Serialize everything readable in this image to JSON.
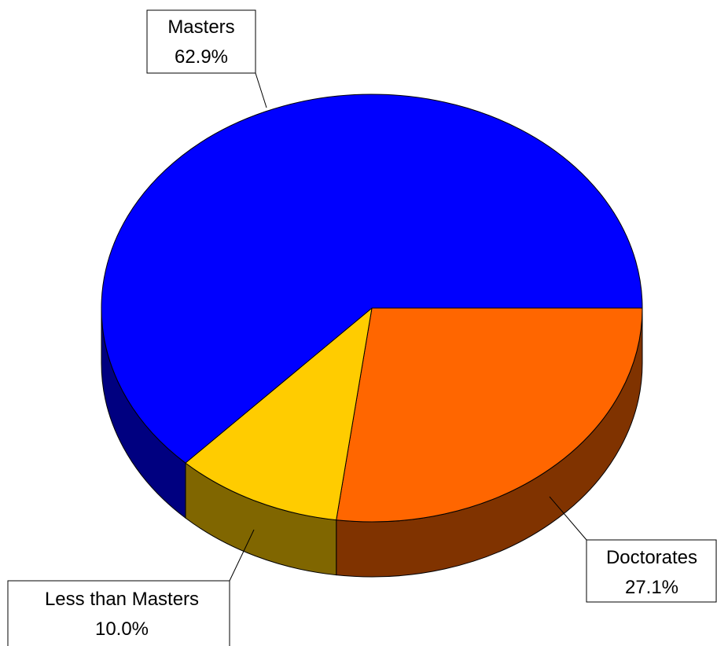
{
  "chart_data": {
    "type": "pie",
    "title": "",
    "slices": [
      {
        "label": "Doctorates",
        "value": 27.1,
        "value_text": "27.1%",
        "color": "#ff6600",
        "side_color": "#803300"
      },
      {
        "label": "Less than Masters",
        "value": 10.0,
        "value_text": "10.0%",
        "color": "#ffcc00",
        "side_color": "#806600"
      },
      {
        "label": "Masters",
        "value": 62.9,
        "value_text": "62.9%",
        "color": "#0000ff",
        "side_color": "#000080"
      }
    ],
    "style": "3d",
    "start": "3 o'clock",
    "direction": "clockwise",
    "legend": "none"
  }
}
